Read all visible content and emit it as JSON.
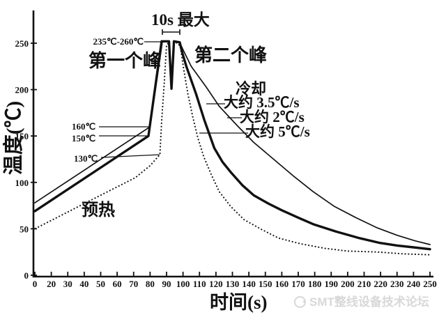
{
  "page": {
    "background": "#ffffff",
    "ink": "#111111"
  },
  "watermark": {
    "text": "SMT整线设备技术论坛",
    "color": "#d8d8d8",
    "logo_icon": "circle-swirl-logo"
  },
  "chart_data": {
    "type": "line",
    "xlabel": "时间(s)",
    "ylabel": "温度(℃)",
    "x_tick_labels": [
      "0",
      "20",
      "30",
      "40",
      "50",
      "60",
      "70",
      "80",
      "90",
      "100",
      "110",
      "120",
      "130",
      "140",
      "150",
      "160",
      "170",
      "180",
      "190",
      "200",
      "210",
      "220",
      "230",
      "240",
      "250"
    ],
    "y_tick_values": [
      0,
      50,
      100,
      150,
      200,
      250
    ],
    "xlim": [
      0,
      250
    ],
    "ylim": [
      0,
      285
    ],
    "grid": false,
    "legend": "none",
    "annotations": {
      "max_10s": "10s 最大",
      "peak_range": "235℃-260℃",
      "first_peak": "第一个峰",
      "second_peak": "第二个峰",
      "cooling": "冷却",
      "rate_35": "大约 3.5℃/s",
      "rate_2": "大约 2℃/s",
      "rate_5": "大约 5℃/s",
      "preheat": "预热",
      "t160": "160℃",
      "t150": "150℃",
      "t130": "130℃"
    },
    "series": [
      {
        "name": "大约 2℃/s",
        "style": "thin-solid",
        "points": [
          [
            0,
            78
          ],
          [
            80,
            160
          ],
          [
            87.5,
            252
          ],
          [
            91.5,
            252
          ],
          [
            93,
            202
          ],
          [
            94.5,
            252
          ],
          [
            98,
            251
          ],
          [
            100,
            243
          ],
          [
            105,
            225
          ],
          [
            114,
            203
          ],
          [
            122,
            182
          ],
          [
            133,
            161
          ],
          [
            143,
            143
          ],
          [
            155,
            125
          ],
          [
            167,
            107
          ],
          [
            179,
            90
          ],
          [
            192,
            74
          ],
          [
            205,
            62
          ],
          [
            218,
            51
          ],
          [
            230,
            43
          ],
          [
            241,
            37
          ],
          [
            250,
            33
          ]
        ]
      },
      {
        "name": "大约 3.5℃/s",
        "style": "thick-solid",
        "points": [
          [
            0,
            69
          ],
          [
            79,
            150
          ],
          [
            87,
            252
          ],
          [
            91.5,
            252
          ],
          [
            93,
            201
          ],
          [
            94.5,
            252
          ],
          [
            98,
            251
          ],
          [
            99.5,
            240
          ],
          [
            102,
            225
          ],
          [
            108,
            195
          ],
          [
            113,
            167
          ],
          [
            119,
            137
          ],
          [
            124,
            122
          ],
          [
            129,
            111
          ],
          [
            136,
            97
          ],
          [
            143,
            86
          ],
          [
            152,
            77
          ],
          [
            160,
            70
          ],
          [
            170,
            62
          ],
          [
            179,
            55
          ],
          [
            193,
            47
          ],
          [
            207,
            40
          ],
          [
            219,
            35
          ],
          [
            230,
            32
          ],
          [
            240,
            30
          ],
          [
            250,
            28
          ]
        ]
      },
      {
        "name": "预热 / 大约 5℃/s",
        "style": "dotted",
        "points": [
          [
            0,
            50
          ],
          [
            31,
            69
          ],
          [
            52,
            88
          ],
          [
            71,
            105
          ],
          [
            80,
            118
          ],
          [
            86,
            130
          ],
          [
            87,
            165
          ],
          [
            88.5,
            205
          ],
          [
            90,
            248
          ],
          [
            91.5,
            251
          ],
          [
            93,
            203
          ],
          [
            94.5,
            251
          ],
          [
            97,
            250
          ],
          [
            98.5,
            245
          ],
          [
            100.5,
            221
          ],
          [
            103,
            195
          ],
          [
            106,
            170
          ],
          [
            109,
            148
          ],
          [
            112.5,
            128
          ],
          [
            117,
            109
          ],
          [
            122,
            90
          ],
          [
            129,
            74
          ],
          [
            137,
            60
          ],
          [
            148,
            49
          ],
          [
            158,
            40
          ],
          [
            171,
            34
          ],
          [
            186,
            29
          ],
          [
            200,
            26
          ],
          [
            218,
            25
          ],
          [
            234,
            23
          ],
          [
            250,
            22
          ]
        ]
      }
    ]
  }
}
